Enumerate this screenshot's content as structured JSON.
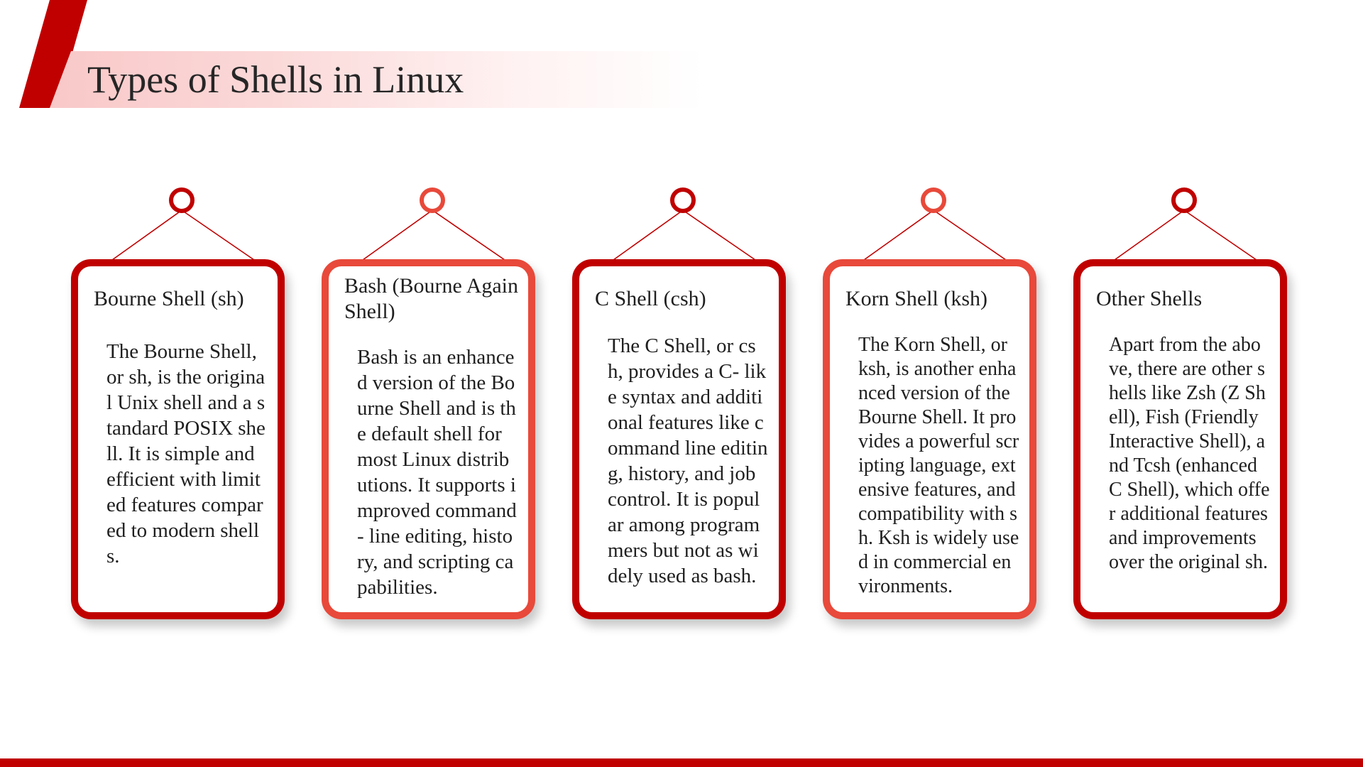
{
  "slide": {
    "title": "Types of Shells in Linux",
    "accent_color": "#c00000",
    "accent_light_color": "#e8493a"
  },
  "cards": [
    {
      "title": "Bourne Shell (sh)",
      "body": "The Bourne Shell, or sh, is the original Unix shell and a standard POSIX shell. It is simple and efficient with limited features compared to modern shells."
    },
    {
      "title": "Bash (Bourne Again Shell)",
      "body": "Bash is an enhanced version of the Bourne Shell and is the default shell for most Linux distributions. It supports improved command- line editing, history, and scripting capabilities."
    },
    {
      "title": "C Shell (csh)",
      "body": "The C Shell, or csh, provides a C- like syntax and additional features like command line editing, history, and job control. It is popular among programmers but not as widely used as bash."
    },
    {
      "title": "Korn Shell (ksh)",
      "body": "The Korn Shell, or ksh, is another enhanced version of the Bourne Shell. It provides a powerful scripting language, extensive features, and compatibility with sh. Ksh is widely used in commercial environments."
    },
    {
      "title": "Other Shells",
      "body": "Apart from the above, there are other shells like Zsh (Z Shell), Fish (Friendly Interactive Shell), and Tcsh (enhanced C Shell), which offer additional features and improvements over the original sh."
    }
  ]
}
